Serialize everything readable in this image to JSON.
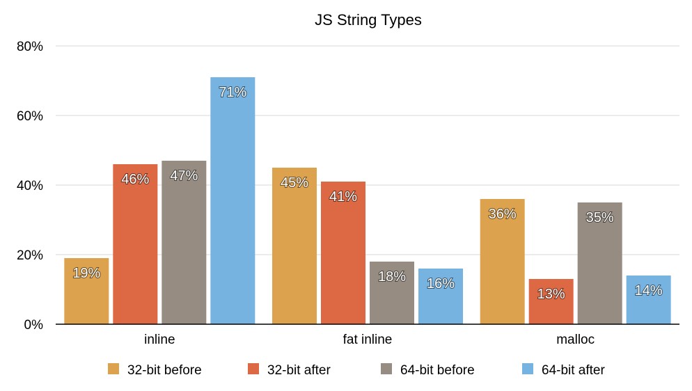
{
  "chart_data": {
    "type": "bar",
    "title": "JS String Types",
    "categories": [
      "inline",
      "fat inline",
      "malloc"
    ],
    "series": [
      {
        "name": "32-bit before",
        "color": "#DDA24D",
        "values": [
          19,
          45,
          36
        ],
        "labels": [
          "19%",
          "45%",
          "36%"
        ]
      },
      {
        "name": "32-bit after",
        "color": "#DC6844",
        "values": [
          46,
          41,
          13
        ],
        "labels": [
          "46%",
          "41%",
          "13%"
        ]
      },
      {
        "name": "64-bit before",
        "color": "#968C82",
        "values": [
          47,
          18,
          35
        ],
        "labels": [
          "47%",
          "18%",
          "35%"
        ]
      },
      {
        "name": "64-bit after",
        "color": "#76B3E0",
        "values": [
          71,
          16,
          14
        ],
        "labels": [
          "71%",
          "16%",
          "14%"
        ]
      }
    ],
    "yticks": [
      "0%",
      "20%",
      "40%",
      "60%",
      "80%"
    ],
    "ylim": [
      0,
      80
    ],
    "xlabel": "",
    "ylabel": "",
    "grid": true,
    "legend": "bottom"
  }
}
